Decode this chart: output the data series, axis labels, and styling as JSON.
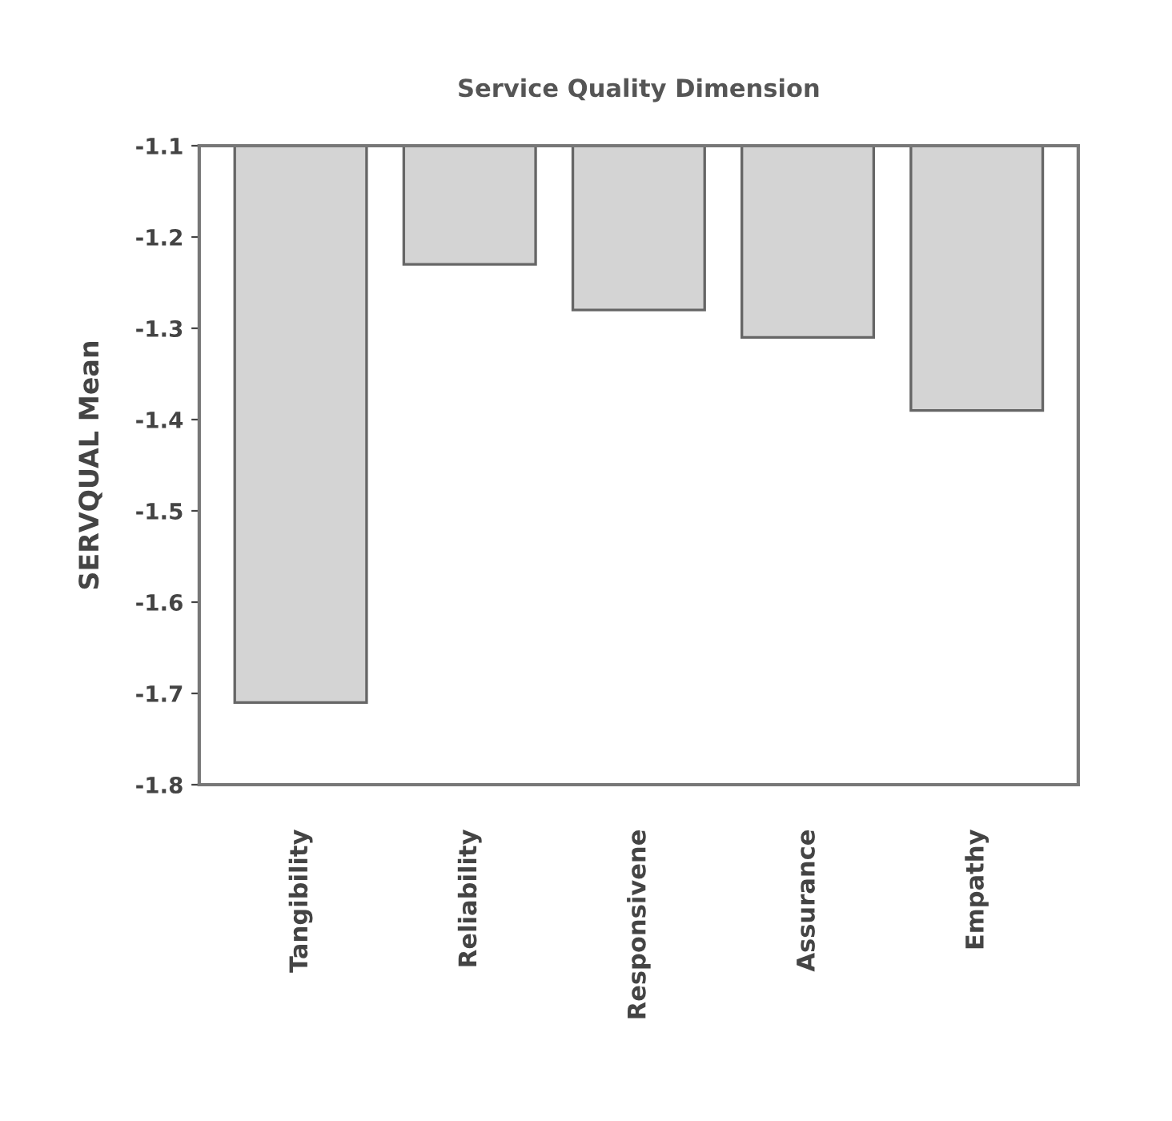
{
  "chart_data": {
    "type": "bar",
    "title": "Service Quality Dimension",
    "ylabel": "SERVQUAL Mean",
    "categories": [
      "Tangibility",
      "Reliability",
      "Responsivene",
      "Assurance",
      "Empathy"
    ],
    "values": [
      -1.71,
      -1.23,
      -1.28,
      -1.31,
      -1.39
    ],
    "color": "#d4d4d4",
    "ylim": [
      -1.8,
      -1.1
    ],
    "yticks": [
      -1.8,
      -1.7,
      -1.6,
      -1.5,
      -1.4,
      -1.3,
      -1.2,
      -1.1
    ],
    "grid": false
  }
}
